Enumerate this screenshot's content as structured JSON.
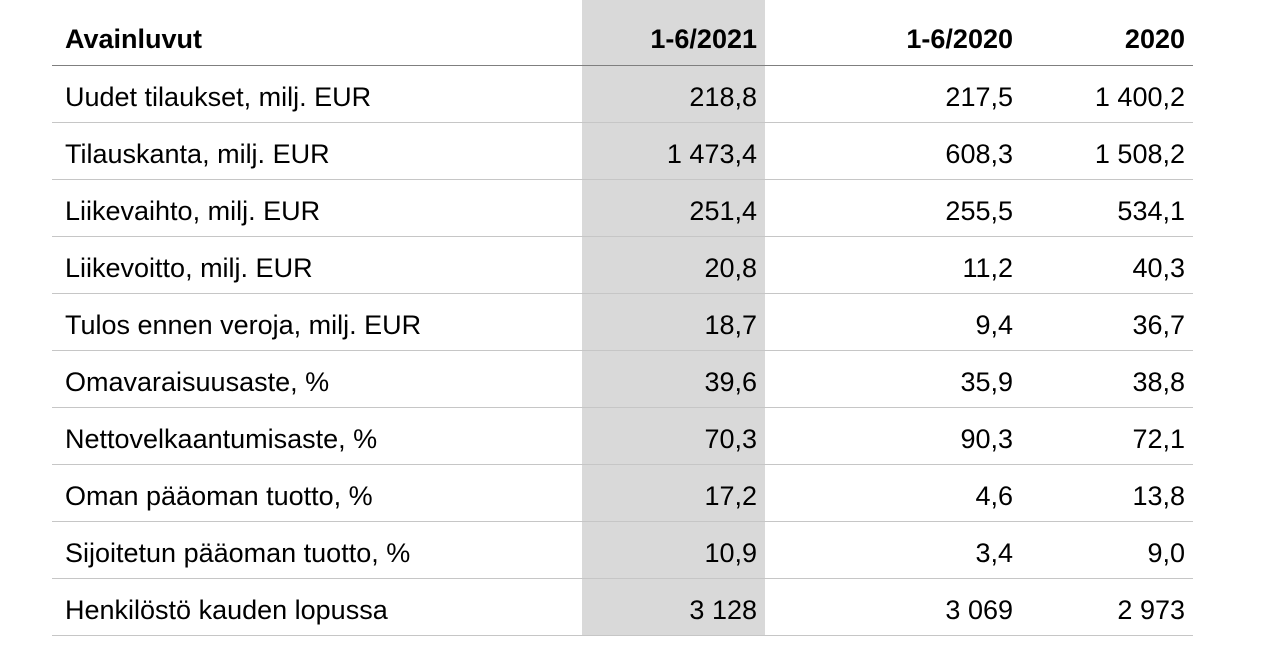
{
  "table": {
    "title_column": "Avainluvut",
    "header": {
      "columns": [
        {
          "label": "1-6/2021",
          "highlighted": true
        },
        {
          "label": "1-6/2020",
          "highlighted": false
        },
        {
          "label": "2020",
          "highlighted": false
        }
      ]
    },
    "rows": [
      {
        "label": "Uudet tilaukset, milj. EUR",
        "values": [
          "218,8",
          "217,5",
          "1 400,2"
        ]
      },
      {
        "label": "Tilauskanta, milj. EUR",
        "values": [
          "1 473,4",
          "608,3",
          "1 508,2"
        ]
      },
      {
        "label": "Liikevaihto, milj. EUR",
        "values": [
          "251,4",
          "255,5",
          "534,1"
        ]
      },
      {
        "label": "Liikevoitto, milj. EUR",
        "values": [
          "20,8",
          "11,2",
          "40,3"
        ]
      },
      {
        "label": "Tulos ennen veroja, milj. EUR",
        "values": [
          "18,7",
          "9,4",
          "36,7"
        ]
      },
      {
        "label": "Omavaraisuusaste, %",
        "values": [
          "39,6",
          "35,9",
          "38,8"
        ]
      },
      {
        "label": "Nettovelkaantumisaste, %",
        "values": [
          "70,3",
          "90,3",
          "72,1"
        ]
      },
      {
        "label": "Oman pääoman tuotto, %",
        "values": [
          "17,2",
          "4,6",
          "13,8"
        ]
      },
      {
        "label": "Sijoitetun pääoman tuotto, %",
        "values": [
          "10,9",
          "3,4",
          "9,0"
        ]
      },
      {
        "label": "Henkilöstö kauden lopussa",
        "values": [
          "3 128",
          "3 069",
          "2 973"
        ]
      }
    ]
  },
  "colors": {
    "highlight_column_bg": "#d9d9d9",
    "row_divider": "#c6c6c6",
    "header_divider": "#7f7f7f",
    "text": "#000000"
  }
}
